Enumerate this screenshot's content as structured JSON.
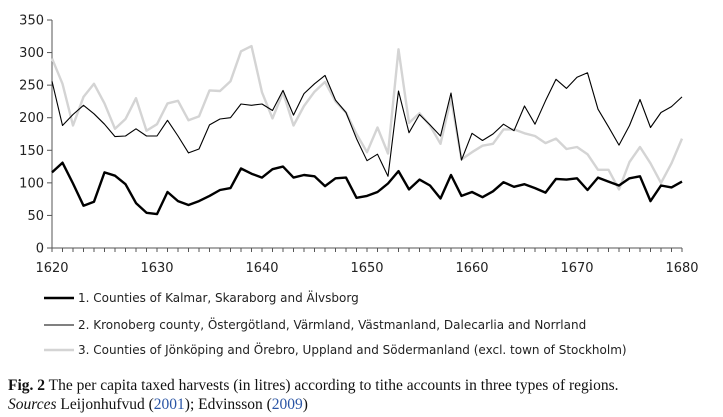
{
  "chart_data": {
    "type": "line",
    "xlim": [
      1620,
      1680
    ],
    "ylim": [
      0,
      350
    ],
    "xticks": [
      1620,
      1630,
      1640,
      1650,
      1660,
      1670,
      1680
    ],
    "yticks": [
      0,
      50,
      100,
      150,
      200,
      250,
      300,
      350
    ],
    "grid": false,
    "legend_position": "bottom",
    "series": [
      {
        "name": "1. Counties of Kalmar, Skaraborg and Älvsborg",
        "color": "#000000",
        "style": "thick",
        "x": [
          1620,
          1621,
          1622,
          1623,
          1624,
          1625,
          1626,
          1627,
          1628,
          1629,
          1630,
          1631,
          1632,
          1633,
          1634,
          1635,
          1636,
          1637,
          1638,
          1639,
          1640,
          1641,
          1642,
          1643,
          1644,
          1645,
          1646,
          1647,
          1648,
          1649,
          1650,
          1651,
          1652,
          1653,
          1654,
          1655,
          1656,
          1657,
          1658,
          1659,
          1660,
          1661,
          1662,
          1663,
          1664,
          1665,
          1666,
          1667,
          1668,
          1669,
          1670,
          1671,
          1672,
          1673,
          1674,
          1675,
          1676,
          1677,
          1678,
          1679,
          1680
        ],
        "values": [
          116,
          131,
          99,
          65,
          71,
          116,
          111,
          98,
          69,
          54,
          52,
          86,
          72,
          66,
          72,
          80,
          89,
          92,
          122,
          114,
          108,
          121,
          125,
          108,
          112,
          110,
          95,
          107,
          108,
          77,
          80,
          86,
          99,
          118,
          90,
          105,
          96,
          76,
          112,
          80,
          86,
          78,
          87,
          101,
          94,
          98,
          92,
          85,
          106,
          105,
          107,
          89,
          108,
          102,
          96,
          107,
          110,
          72,
          96,
          93,
          102
        ]
      },
      {
        "name": "2. Kronoberg county, Östergötland, Värmland, Västmanland,  Dalecarlia and Norrland",
        "color": "#000000",
        "style": "thin",
        "x": [
          1620,
          1621,
          1622,
          1623,
          1624,
          1625,
          1626,
          1627,
          1628,
          1629,
          1630,
          1631,
          1632,
          1633,
          1634,
          1635,
          1636,
          1637,
          1638,
          1639,
          1640,
          1641,
          1642,
          1643,
          1644,
          1645,
          1646,
          1647,
          1648,
          1649,
          1650,
          1651,
          1652,
          1653,
          1654,
          1655,
          1656,
          1657,
          1658,
          1659,
          1660,
          1661,
          1662,
          1663,
          1664,
          1665,
          1666,
          1667,
          1668,
          1669,
          1670,
          1671,
          1672,
          1673,
          1674,
          1675,
          1676,
          1677,
          1678,
          1679,
          1680
        ],
        "values": [
          256,
          188,
          205,
          219,
          206,
          190,
          171,
          172,
          183,
          172,
          172,
          196,
          172,
          146,
          152,
          189,
          198,
          200,
          221,
          219,
          221,
          211,
          242,
          204,
          237,
          252,
          265,
          227,
          208,
          168,
          134,
          144,
          110,
          241,
          177,
          205,
          189,
          172,
          238,
          135,
          176,
          165,
          175,
          190,
          180,
          218,
          190,
          226,
          259,
          245,
          262,
          269,
          213,
          186,
          158,
          188,
          228,
          185,
          208,
          217,
          232
        ]
      },
      {
        "name": "3. Counties of Jönköping and Örebro, Uppland and Södermanland (excl. town of Stockholm)",
        "color": "#d4d4d4",
        "style": "thick",
        "x": [
          1620,
          1621,
          1622,
          1623,
          1624,
          1625,
          1626,
          1627,
          1628,
          1629,
          1630,
          1631,
          1632,
          1633,
          1634,
          1635,
          1636,
          1637,
          1638,
          1639,
          1640,
          1641,
          1642,
          1643,
          1644,
          1645,
          1646,
          1647,
          1648,
          1649,
          1650,
          1651,
          1652,
          1653,
          1654,
          1655,
          1656,
          1657,
          1658,
          1659,
          1660,
          1661,
          1662,
          1663,
          1664,
          1665,
          1666,
          1667,
          1668,
          1669,
          1670,
          1671,
          1672,
          1673,
          1674,
          1675,
          1676,
          1677,
          1678,
          1679,
          1680
        ],
        "values": [
          291,
          252,
          188,
          232,
          252,
          222,
          183,
          198,
          230,
          180,
          190,
          222,
          226,
          196,
          202,
          242,
          241,
          256,
          302,
          310,
          239,
          199,
          239,
          188,
          218,
          240,
          255,
          225,
          208,
          175,
          147,
          185,
          145,
          305,
          192,
          207,
          188,
          160,
          230,
          136,
          147,
          157,
          160,
          182,
          182,
          176,
          172,
          161,
          168,
          152,
          155,
          144,
          120,
          120,
          90,
          132,
          155,
          130,
          100,
          130,
          168
        ]
      }
    ]
  },
  "caption": {
    "fig_label": "Fig. 2",
    "text": "The per capita taxed harvests (in litres) according to tithe accounts in three types of regions.",
    "sources_label": "Sources",
    "sources_author1": "Leijonhufvud (",
    "sources_year1": "2001",
    "sources_mid": "); Edvinsson (",
    "sources_year2": "2009",
    "sources_end": ")"
  }
}
